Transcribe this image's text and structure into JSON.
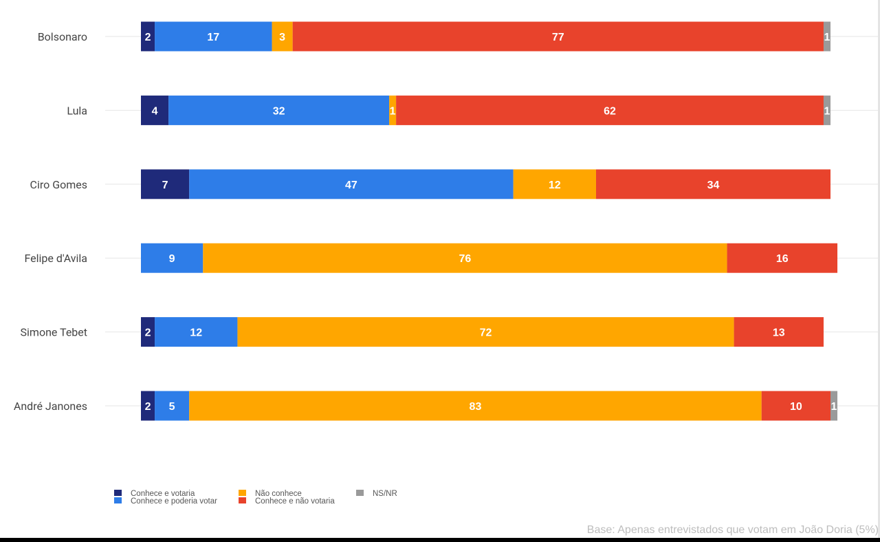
{
  "chart_data": {
    "type": "bar",
    "orientation": "horizontal",
    "stacked": true,
    "categories": [
      "Bolsonaro",
      "Lula",
      "Ciro Gomes",
      "Felipe d'Avila",
      "Simone Tebet",
      "André Janones"
    ],
    "series": [
      {
        "name": "Conhece e votaria",
        "color": "#1f2a7a",
        "values": [
          2,
          4,
          7,
          0,
          2,
          2
        ]
      },
      {
        "name": "Conhece e poderia votar",
        "color": "#2e7de8",
        "values": [
          17,
          32,
          47,
          9,
          12,
          5
        ]
      },
      {
        "name": "Não conhece",
        "color": "#ffa600",
        "values": [
          3,
          1,
          12,
          76,
          72,
          83
        ]
      },
      {
        "name": "Conhece e não votaria",
        "color": "#e8432c",
        "values": [
          77,
          62,
          34,
          16,
          13,
          10
        ]
      },
      {
        "name": "NS/NR",
        "color": "#9a9a9a",
        "values": [
          1,
          1,
          0,
          0,
          0,
          1
        ]
      }
    ],
    "xlim": [
      0,
      101
    ],
    "grid": true,
    "legend_position": "bottom-left"
  },
  "footnote": "Base: Apenas entrevistados que votam em João Doria (5%)"
}
